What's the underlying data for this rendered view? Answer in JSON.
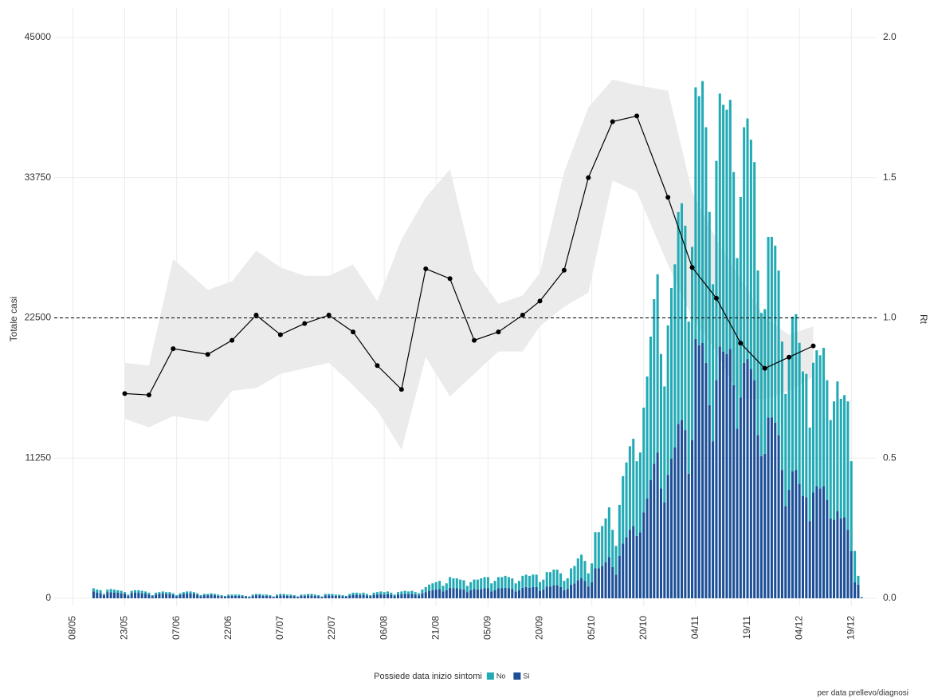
{
  "chart_data": {
    "type": "bar",
    "ylabel": "Totale casi",
    "y2label": "Rt",
    "legend_title": "Possiede data inizio sintomi",
    "footnote": "per data prellevo/diagnosi",
    "grid": true,
    "legend": "bottom",
    "stacked": true,
    "xlim": [
      "01/05",
      "27/12"
    ],
    "xticks": [
      "08/05",
      "23/05",
      "07/06",
      "22/06",
      "07/07",
      "22/07",
      "06/08",
      "21/08",
      "05/09",
      "20/09",
      "05/10",
      "20/10",
      "04/11",
      "19/11",
      "04/12",
      "19/12"
    ],
    "ylim": [
      0,
      45000
    ],
    "yticks": [
      0,
      11250,
      22500,
      33750,
      45000
    ],
    "y2lim": [
      0,
      2
    ],
    "y2ticks": [
      {
        "value": 0,
        "label": "0.0"
      },
      0.5,
      {
        "value": 1,
        "label": "1.0"
      },
      1.5,
      {
        "value": 2,
        "label": "2.0"
      }
    ],
    "hline": {
      "axis": "y2",
      "value": 1,
      "style": "dashed"
    },
    "categories": [
      "14/05",
      "15/05",
      "16/05",
      "17/05",
      "18/05",
      "19/05",
      "20/05",
      "21/05",
      "22/05",
      "23/05",
      "24/05",
      "25/05",
      "26/05",
      "27/05",
      "28/05",
      "29/05",
      "30/05",
      "31/05",
      "01/06",
      "02/06",
      "03/06",
      "04/06",
      "05/06",
      "06/06",
      "07/06",
      "08/06",
      "09/06",
      "10/06",
      "11/06",
      "12/06",
      "13/06",
      "14/06",
      "15/06",
      "16/06",
      "17/06",
      "18/06",
      "19/06",
      "20/06",
      "21/06",
      "22/06",
      "23/06",
      "24/06",
      "25/06",
      "26/06",
      "27/06",
      "28/06",
      "29/06",
      "30/06",
      "01/07",
      "02/07",
      "03/07",
      "04/07",
      "05/07",
      "06/07",
      "07/07",
      "08/07",
      "09/07",
      "10/07",
      "11/07",
      "12/07",
      "13/07",
      "14/07",
      "15/07",
      "16/07",
      "17/07",
      "18/07",
      "19/07",
      "20/07",
      "21/07",
      "22/07",
      "23/07",
      "24/07",
      "25/07",
      "26/07",
      "27/07",
      "28/07",
      "29/07",
      "30/07",
      "31/07",
      "01/08",
      "02/08",
      "03/08",
      "04/08",
      "05/08",
      "06/08",
      "07/08",
      "08/08",
      "09/08",
      "10/08",
      "11/08",
      "12/08",
      "13/08",
      "14/08",
      "15/08",
      "16/08",
      "17/08",
      "18/08",
      "19/08",
      "20/08",
      "21/08",
      "22/08",
      "23/08",
      "24/08",
      "25/08",
      "26/08",
      "27/08",
      "28/08",
      "29/08",
      "30/08",
      "31/08",
      "01/09",
      "02/09",
      "03/09",
      "04/09",
      "05/09",
      "06/09",
      "07/09",
      "08/09",
      "09/09",
      "10/09",
      "11/09",
      "12/09",
      "13/09",
      "14/09",
      "15/09",
      "16/09",
      "17/09",
      "18/09",
      "19/09",
      "20/09",
      "21/09",
      "22/09",
      "23/09",
      "24/09",
      "25/09",
      "26/09",
      "27/09",
      "28/09",
      "29/09",
      "30/09",
      "01/10",
      "02/10",
      "03/10",
      "04/10",
      "05/10",
      "06/10",
      "07/10",
      "08/10",
      "09/10",
      "10/10",
      "11/10",
      "12/10",
      "13/10",
      "14/10",
      "15/10",
      "16/10",
      "17/10",
      "18/10",
      "19/10",
      "20/10",
      "21/10",
      "22/10",
      "23/10",
      "24/10",
      "25/10",
      "26/10",
      "27/10",
      "28/10",
      "29/10",
      "30/10",
      "31/10",
      "01/11",
      "02/11",
      "03/11",
      "04/11",
      "05/11",
      "06/11",
      "07/11",
      "08/11",
      "09/11",
      "10/11",
      "11/11",
      "12/11",
      "13/11",
      "14/11",
      "15/11",
      "16/11",
      "17/11",
      "18/11",
      "19/11",
      "20/11",
      "21/11",
      "22/11",
      "23/11",
      "24/11",
      "25/11",
      "26/11",
      "27/11",
      "28/11",
      "29/11",
      "30/11",
      "01/12",
      "02/12",
      "03/12",
      "04/12",
      "05/12",
      "06/12",
      "07/12",
      "08/12",
      "09/12",
      "10/12",
      "11/12",
      "12/12",
      "13/12",
      "14/12",
      "15/12",
      "16/12",
      "17/12",
      "18/12",
      "19/12",
      "20/12",
      "21/12",
      "22/12"
    ],
    "series": [
      {
        "name": "No",
        "color": "#22aab5",
        "values": [
          250,
          250,
          250,
          100,
          200,
          250,
          250,
          200,
          200,
          150,
          100,
          180,
          200,
          200,
          200,
          170,
          150,
          70,
          150,
          150,
          170,
          150,
          150,
          120,
          80,
          120,
          150,
          170,
          170,
          150,
          120,
          80,
          100,
          100,
          120,
          100,
          100,
          70,
          60,
          100,
          100,
          100,
          100,
          80,
          60,
          50,
          100,
          100,
          100,
          100,
          100,
          80,
          50,
          100,
          120,
          120,
          100,
          100,
          80,
          50,
          100,
          100,
          120,
          120,
          100,
          80,
          50,
          120,
          120,
          120,
          100,
          100,
          80,
          70,
          120,
          170,
          170,
          150,
          170,
          130,
          90,
          170,
          200,
          220,
          200,
          220,
          170,
          110,
          200,
          220,
          250,
          220,
          250,
          200,
          160,
          300,
          400,
          500,
          550,
          600,
          650,
          450,
          550,
          850,
          800,
          800,
          750,
          750,
          500,
          650,
          750,
          800,
          850,
          900,
          900,
          650,
          750,
          900,
          900,
          950,
          900,
          850,
          650,
          750,
          950,
          1000,
          950,
          1000,
          1000,
          700,
          800,
          1150,
          1150,
          1250,
          1250,
          1100,
          750,
          850,
          1300,
          1400,
          1750,
          1900,
          1600,
          1050,
          1500,
          2900,
          2900,
          3200,
          3500,
          4000,
          3000,
          2300,
          4100,
          5400,
          6000,
          6700,
          7000,
          6000,
          6400,
          8400,
          9800,
          11500,
          13200,
          14300,
          10800,
          9300,
          12000,
          13700,
          14700,
          17000,
          17400,
          16400,
          12200,
          15500,
          20200,
          20000,
          21000,
          18900,
          15500,
          12600,
          17600,
          20300,
          19800,
          19600,
          20000,
          17100,
          13700,
          16100,
          18900,
          19300,
          18400,
          17500,
          13200,
          11500,
          11600,
          14500,
          14500,
          14200,
          13200,
          10300,
          9000,
          10600,
          12400,
          12500,
          11300,
          10000,
          9900,
          7500,
          10400,
          10900,
          10700,
          11100,
          9600,
          7900,
          9500,
          10400,
          9600,
          9800,
          10300,
          7200,
          2500,
          700,
          50
        ]
      },
      {
        "name": "Sì",
        "color": "#1c4f97",
        "values": [
          550,
          450,
          400,
          250,
          500,
          500,
          450,
          450,
          400,
          350,
          200,
          420,
          450,
          450,
          400,
          380,
          300,
          180,
          300,
          350,
          380,
          350,
          350,
          280,
          170,
          280,
          350,
          380,
          380,
          350,
          280,
          170,
          250,
          250,
          280,
          250,
          200,
          180,
          140,
          200,
          200,
          200,
          200,
          170,
          140,
          100,
          200,
          250,
          250,
          200,
          200,
          170,
          100,
          200,
          230,
          230,
          200,
          200,
          170,
          100,
          200,
          200,
          230,
          230,
          200,
          170,
          100,
          230,
          230,
          230,
          200,
          200,
          170,
          130,
          230,
          280,
          280,
          250,
          280,
          220,
          160,
          280,
          300,
          330,
          300,
          330,
          280,
          190,
          300,
          330,
          350,
          330,
          350,
          300,
          240,
          400,
          500,
          600,
          650,
          700,
          750,
          550,
          650,
          850,
          800,
          800,
          750,
          700,
          500,
          650,
          750,
          700,
          750,
          800,
          800,
          550,
          650,
          800,
          800,
          850,
          800,
          750,
          550,
          650,
          850,
          900,
          850,
          900,
          900,
          600,
          700,
          950,
          950,
          1050,
          1050,
          900,
          650,
          750,
          1100,
          1200,
          1450,
          1600,
          1400,
          950,
          1300,
          2400,
          2400,
          2600,
          2900,
          3300,
          2500,
          1900,
          3400,
          4400,
          4900,
          5500,
          5800,
          5000,
          5300,
          6900,
          8000,
          9500,
          10800,
          11700,
          8800,
          7700,
          9900,
          11200,
          12100,
          14000,
          14300,
          13500,
          10000,
          12700,
          20800,
          20300,
          20500,
          18900,
          15500,
          12600,
          17500,
          20200,
          19800,
          19600,
          20000,
          17100,
          13600,
          16100,
          18900,
          19200,
          18400,
          17500,
          13100,
          11400,
          11600,
          14500,
          14500,
          14100,
          13100,
          10300,
          7400,
          8700,
          10200,
          10300,
          9200,
          8200,
          8100,
          6200,
          8500,
          9000,
          8800,
          9000,
          7900,
          6400,
          6300,
          7000,
          6400,
          6500,
          5500,
          3800,
          1300,
          1100,
          50
        ]
      }
    ],
    "line": {
      "axis": "y2",
      "color": "#000000",
      "band_color": "#ebebeb",
      "x": [
        "23/05",
        "30/05",
        "06/06",
        "16/06",
        "23/06",
        "30/06",
        "07/07",
        "14/07",
        "21/07",
        "28/07",
        "04/08",
        "11/08",
        "18/08",
        "25/08",
        "01/09",
        "08/09",
        "15/09",
        "20/09",
        "27/09",
        "04/10",
        "11/10",
        "18/10",
        "27/10",
        "03/11",
        "10/11",
        "17/11",
        "24/11",
        "01/12",
        "08/12"
      ],
      "values": [
        0.73,
        0.725,
        0.89,
        0.87,
        0.92,
        1.01,
        0.94,
        0.98,
        1.01,
        0.95,
        0.83,
        0.745,
        1.175,
        1.14,
        0.92,
        0.95,
        1.01,
        1.06,
        1.17,
        1.5,
        1.7,
        1.72,
        1.43,
        1.18,
        1.07,
        0.91,
        0.82,
        0.86,
        0.9
      ],
      "upper": [
        0.84,
        0.83,
        1.21,
        1.1,
        1.13,
        1.24,
        1.18,
        1.15,
        1.15,
        1.19,
        1.06,
        1.28,
        1.43,
        1.53,
        1.17,
        1.05,
        1.08,
        1.16,
        1.52,
        1.75,
        1.85,
        1.83,
        1.81,
        1.45,
        1.28,
        1.14,
        1.0,
        0.94,
        0.97
      ],
      "lower": [
        0.64,
        0.61,
        0.65,
        0.63,
        0.74,
        0.75,
        0.8,
        0.82,
        0.84,
        0.76,
        0.67,
        0.53,
        0.86,
        0.72,
        0.8,
        0.88,
        0.88,
        0.97,
        1.04,
        1.09,
        1.49,
        1.45,
        1.19,
        1.0,
        0.88,
        0.71,
        0.71,
        0.74,
        0.79
      ]
    }
  }
}
